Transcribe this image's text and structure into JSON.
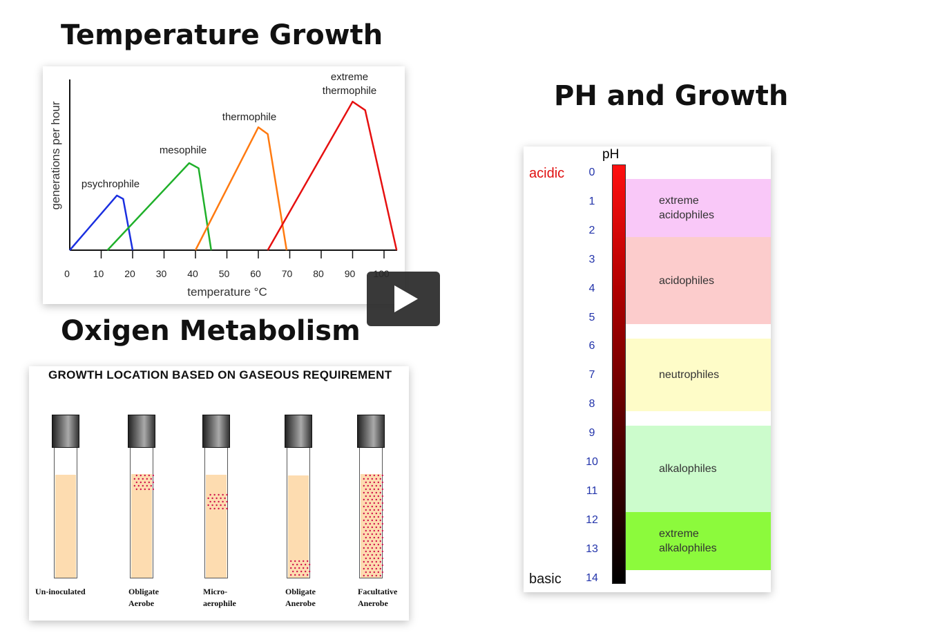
{
  "slide": {
    "temp_title": "Temperature Growth",
    "oxygen_title": "Oxigen Metabolism",
    "ph_title": "PH and Growth"
  },
  "chart_data": {
    "type": "line",
    "xlabel": "temperature °C",
    "ylabel": "generations per hour",
    "xlim": [
      0,
      105
    ],
    "xticks": [
      "0",
      "10",
      "20",
      "30",
      "40",
      "50",
      "60",
      "70",
      "80",
      "90",
      "100"
    ],
    "series": [
      {
        "name": "psychrophile",
        "color": "#1a2fe0",
        "points": [
          [
            0,
            0
          ],
          [
            15,
            0.32
          ],
          [
            17,
            0.3
          ],
          [
            20,
            0
          ]
        ]
      },
      {
        "name": "mesophile",
        "color": "#1fb02a",
        "points": [
          [
            12,
            0
          ],
          [
            38,
            0.51
          ],
          [
            41,
            0.48
          ],
          [
            45,
            0
          ]
        ]
      },
      {
        "name": "thermophile",
        "color": "#ff7a10",
        "points": [
          [
            40,
            0
          ],
          [
            60,
            0.72
          ],
          [
            63,
            0.68
          ],
          [
            69,
            0
          ]
        ]
      },
      {
        "name": "extreme thermophile",
        "color": "#e61010",
        "points": [
          [
            63,
            0
          ],
          [
            90,
            0.87
          ],
          [
            94,
            0.82
          ],
          [
            104,
            0
          ]
        ]
      }
    ]
  },
  "oxygen": {
    "header": "GROWTH LOCATION BASED ON GASEOUS REQUIREMENT",
    "tubes": [
      {
        "label": "Un-inoculated",
        "growth": "none"
      },
      {
        "label": "Obligate\nAerobe",
        "growth": "top"
      },
      {
        "label": "Micro-\naerophile",
        "growth": "upper-middle"
      },
      {
        "label": "Obligate\nAnerobe",
        "growth": "bottom"
      },
      {
        "label": "Facultative\nAnerobe",
        "growth": "throughout"
      }
    ]
  },
  "ph": {
    "axis_label": "pH",
    "acidic": "acidic",
    "basic": "basic",
    "numbers": [
      "0",
      "1",
      "2",
      "3",
      "4",
      "5",
      "6",
      "7",
      "8",
      "9",
      "10",
      "11",
      "12",
      "13",
      "14"
    ],
    "bands": [
      {
        "label": "extreme\nacidophiles",
        "from": 0.2,
        "to": 2.2,
        "color": "#f9c8f8"
      },
      {
        "label": "acidophiles",
        "from": 2.2,
        "to": 5.2,
        "color": "#fccccc"
      },
      {
        "label": "neutrophiles",
        "from": 5.7,
        "to": 8.2,
        "color": "#fefcc8"
      },
      {
        "label": "alkalophiles",
        "from": 8.7,
        "to": 11.7,
        "color": "#ccfccc"
      },
      {
        "label": "extreme\nalkalophiles",
        "from": 11.7,
        "to": 13.7,
        "color": "#8cfa3c"
      }
    ]
  },
  "player": {
    "icon": "play-icon"
  }
}
